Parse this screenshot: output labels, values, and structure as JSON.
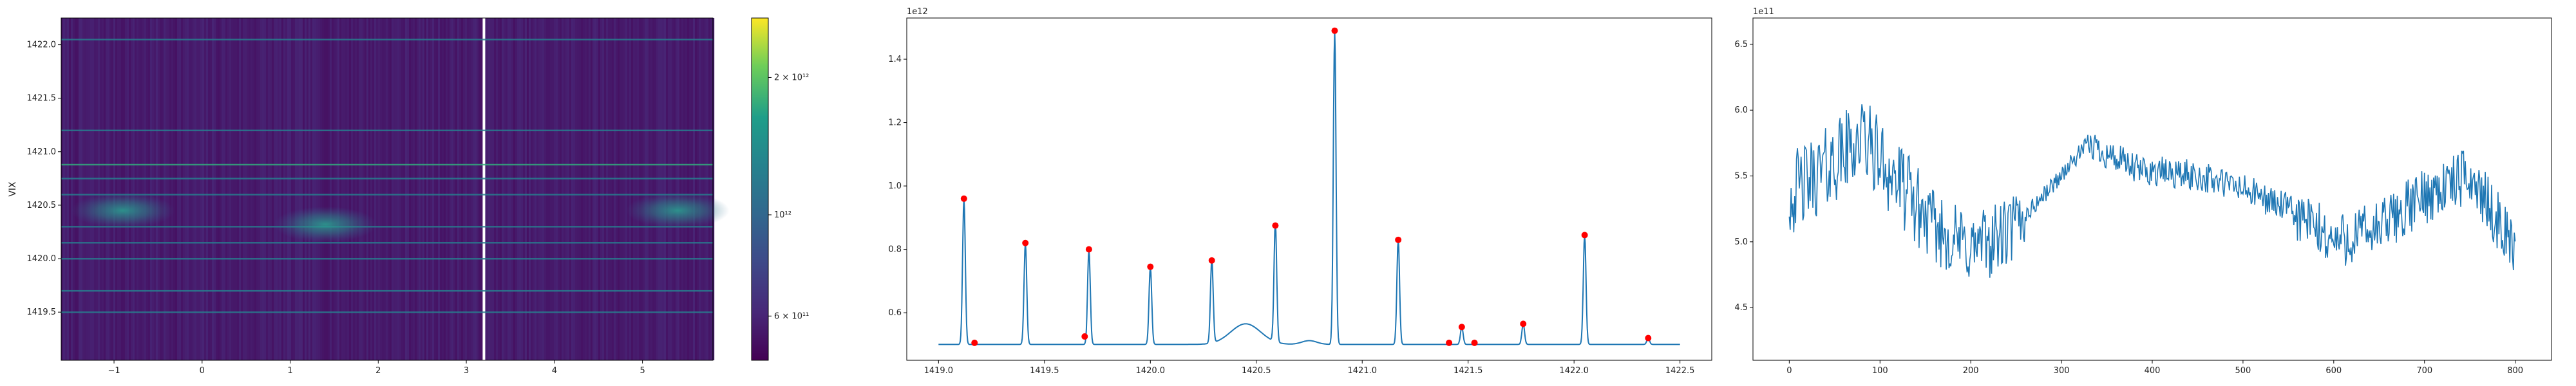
{
  "chart_data": [
    {
      "type": "heatmap",
      "ylabel": "VIX",
      "xlim": [
        -1.6,
        5.8
      ],
      "ylim": [
        1419.05,
        1422.25
      ],
      "x_ticks": [
        -1,
        0,
        1,
        2,
        3,
        4,
        5
      ],
      "x_tick_labels": [
        "−1",
        "0",
        "1",
        "2",
        "3",
        "4",
        "5"
      ],
      "y_ticks": [
        1419.5,
        1420.0,
        1420.5,
        1421.0,
        1421.5,
        1422.0
      ],
      "y_tick_labels": [
        "1419.5",
        "1420.0",
        "1420.5",
        "1421.0",
        "1421.5",
        "1422.0"
      ],
      "colormap": "viridis",
      "colorbar": {
        "scale": "log",
        "tick_labels": [
          "2 × 10¹²",
          "10¹²",
          "6 × 10¹¹"
        ],
        "tick_values": [
          2000000000000,
          1000000000000,
          600000000000
        ],
        "range": [
          480000000000,
          2700000000000
        ]
      },
      "horizontal_lines_y": [
        1419.5,
        1419.7,
        1420.0,
        1420.15,
        1420.3,
        1420.6,
        1420.75,
        1420.88,
        1421.2,
        1422.05
      ],
      "blobs": [
        {
          "x": -0.9,
          "y": 1420.45
        },
        {
          "x": 1.4,
          "y": 1420.32
        },
        {
          "x": 5.4,
          "y": 1420.45
        }
      ]
    },
    {
      "type": "line",
      "offset_label": "1e12",
      "xlim": [
        1418.85,
        1422.65
      ],
      "ylim": [
        0.45,
        1.53
      ],
      "x_ticks": [
        1419.0,
        1419.5,
        1420.0,
        1420.5,
        1421.0,
        1421.5,
        1422.0,
        1422.5
      ],
      "x_tick_labels": [
        "1419.0",
        "1419.5",
        "1420.0",
        "1420.5",
        "1421.0",
        "1421.5",
        "1422.0",
        "1422.5"
      ],
      "y_ticks": [
        0.6,
        0.8,
        1.0,
        1.2,
        1.4
      ],
      "y_tick_labels": [
        "0.6",
        "0.8",
        "1.0",
        "1.2",
        "1.4"
      ],
      "baseline": 0.5,
      "x_range": [
        1419.0,
        1422.5
      ],
      "peaks": [
        {
          "x": 1419.12,
          "y": 0.96
        },
        {
          "x": 1419.41,
          "y": 0.82
        },
        {
          "x": 1419.71,
          "y": 0.8
        },
        {
          "x": 1420.0,
          "y": 0.745
        },
        {
          "x": 1420.29,
          "y": 0.765
        },
        {
          "x": 1420.59,
          "y": 0.875
        },
        {
          "x": 1420.87,
          "y": 1.49
        },
        {
          "x": 1421.17,
          "y": 0.83
        },
        {
          "x": 1421.47,
          "y": 0.555
        },
        {
          "x": 1421.76,
          "y": 0.565
        },
        {
          "x": 1422.05,
          "y": 0.845
        },
        {
          "x": 1422.35,
          "y": 0.52
        }
      ],
      "markers": [
        {
          "x": 1419.12,
          "y": 0.96
        },
        {
          "x": 1419.17,
          "y": 0.505
        },
        {
          "x": 1419.41,
          "y": 0.82
        },
        {
          "x": 1419.69,
          "y": 0.525
        },
        {
          "x": 1419.71,
          "y": 0.8
        },
        {
          "x": 1420.0,
          "y": 0.745
        },
        {
          "x": 1420.29,
          "y": 0.765
        },
        {
          "x": 1420.59,
          "y": 0.875
        },
        {
          "x": 1420.87,
          "y": 1.49
        },
        {
          "x": 1421.17,
          "y": 0.83
        },
        {
          "x": 1421.41,
          "y": 0.505
        },
        {
          "x": 1421.47,
          "y": 0.555
        },
        {
          "x": 1421.53,
          "y": 0.505
        },
        {
          "x": 1421.76,
          "y": 0.565
        },
        {
          "x": 1422.05,
          "y": 0.845
        },
        {
          "x": 1422.35,
          "y": 0.52
        }
      ],
      "bump": {
        "center": 1420.45,
        "height": 0.065,
        "width": 0.1
      },
      "line_color": "#1f77b4",
      "marker_color": "#ff0000"
    },
    {
      "type": "line",
      "offset_label": "1e11",
      "xlim": [
        -40,
        840
      ],
      "ylim": [
        4.1,
        6.7
      ],
      "x_ticks": [
        0,
        100,
        200,
        300,
        400,
        500,
        600,
        700,
        800
      ],
      "x_tick_labels": [
        "0",
        "100",
        "200",
        "300",
        "400",
        "500",
        "600",
        "700",
        "800"
      ],
      "y_ticks": [
        4.5,
        5.0,
        5.5,
        6.0,
        6.5
      ],
      "y_tick_labels": [
        "4.5",
        "5.0",
        "5.5",
        "6.0",
        "6.5"
      ],
      "n_points": 801,
      "trend": [
        [
          0,
          5.35
        ],
        [
          40,
          5.55
        ],
        [
          80,
          5.8
        ],
        [
          120,
          5.45
        ],
        [
          160,
          5.1
        ],
        [
          200,
          4.95
        ],
        [
          240,
          5.05
        ],
        [
          280,
          5.35
        ],
        [
          330,
          5.75
        ],
        [
          380,
          5.55
        ],
        [
          450,
          5.5
        ],
        [
          500,
          5.4
        ],
        [
          550,
          5.25
        ],
        [
          600,
          5.0
        ],
        [
          650,
          5.1
        ],
        [
          700,
          5.35
        ],
        [
          750,
          5.5
        ],
        [
          800,
          4.95
        ]
      ],
      "line_color": "#1f77b4"
    }
  ]
}
